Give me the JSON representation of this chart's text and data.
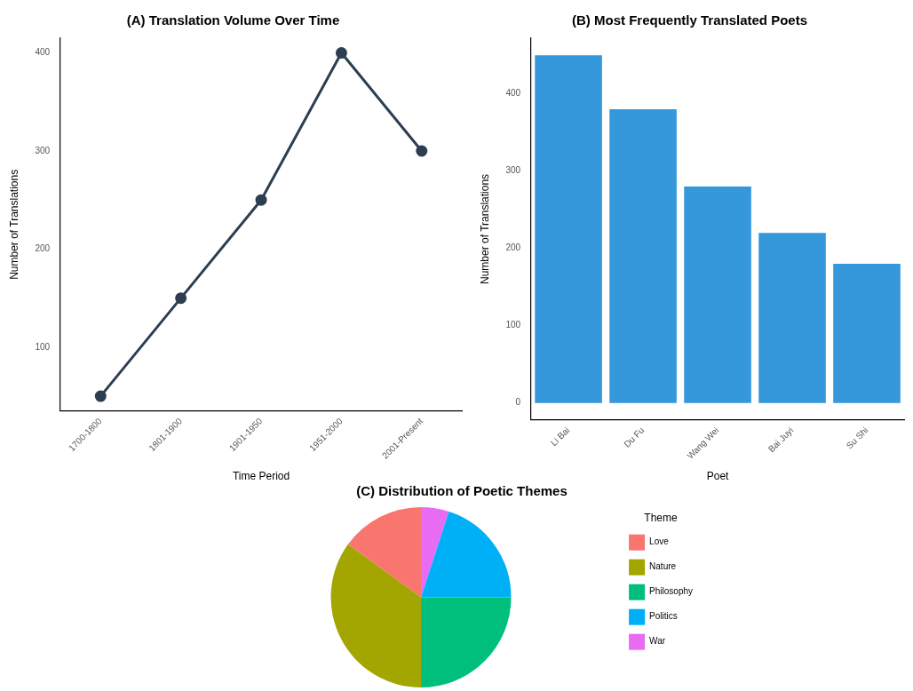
{
  "chart_data": [
    {
      "type": "line",
      "title": "(A) Translation Volume Over Time",
      "xlabel": "Time Period",
      "ylabel": "Number of Translations",
      "categories": [
        "1700-1800",
        "1801-1900",
        "1901-1950",
        "1951-2000",
        "2001-Present"
      ],
      "series": [
        {
          "color": "#2c3e50",
          "values": [
            50,
            150,
            250,
            400,
            300
          ]
        }
      ],
      "ylim": [
        35,
        415
      ],
      "yticks": [
        100,
        200,
        300,
        400
      ],
      "grid": false,
      "legend": false,
      "marker": "circle",
      "line_style": "solid"
    },
    {
      "type": "bar",
      "title": "(B) Most Frequently Translated Poets",
      "xlabel": "Poet",
      "ylabel": "Number of Translations",
      "categories": [
        "Li Bai",
        "Du Fu",
        "Wang Wei",
        "Bai Juyi",
        "Su Shi"
      ],
      "series": [
        {
          "color": "#3498db",
          "values": [
            450,
            380,
            280,
            220,
            180
          ]
        }
      ],
      "ylim": [
        -22,
        472
      ],
      "yticks": [
        0,
        100,
        200,
        300,
        400
      ],
      "grid": false,
      "legend": false
    },
    {
      "type": "pie",
      "title": "(C) Distribution of Poetic Themes",
      "legend_title": "Theme",
      "categories": [
        "Love",
        "Nature",
        "Philosophy",
        "Politics",
        "War"
      ],
      "values": [
        15,
        35,
        25,
        20,
        5
      ],
      "colors": [
        "#f8766d",
        "#a3a500",
        "#00bf7d",
        "#00b0f6",
        "#e76bf3"
      ],
      "legend": "right"
    }
  ]
}
